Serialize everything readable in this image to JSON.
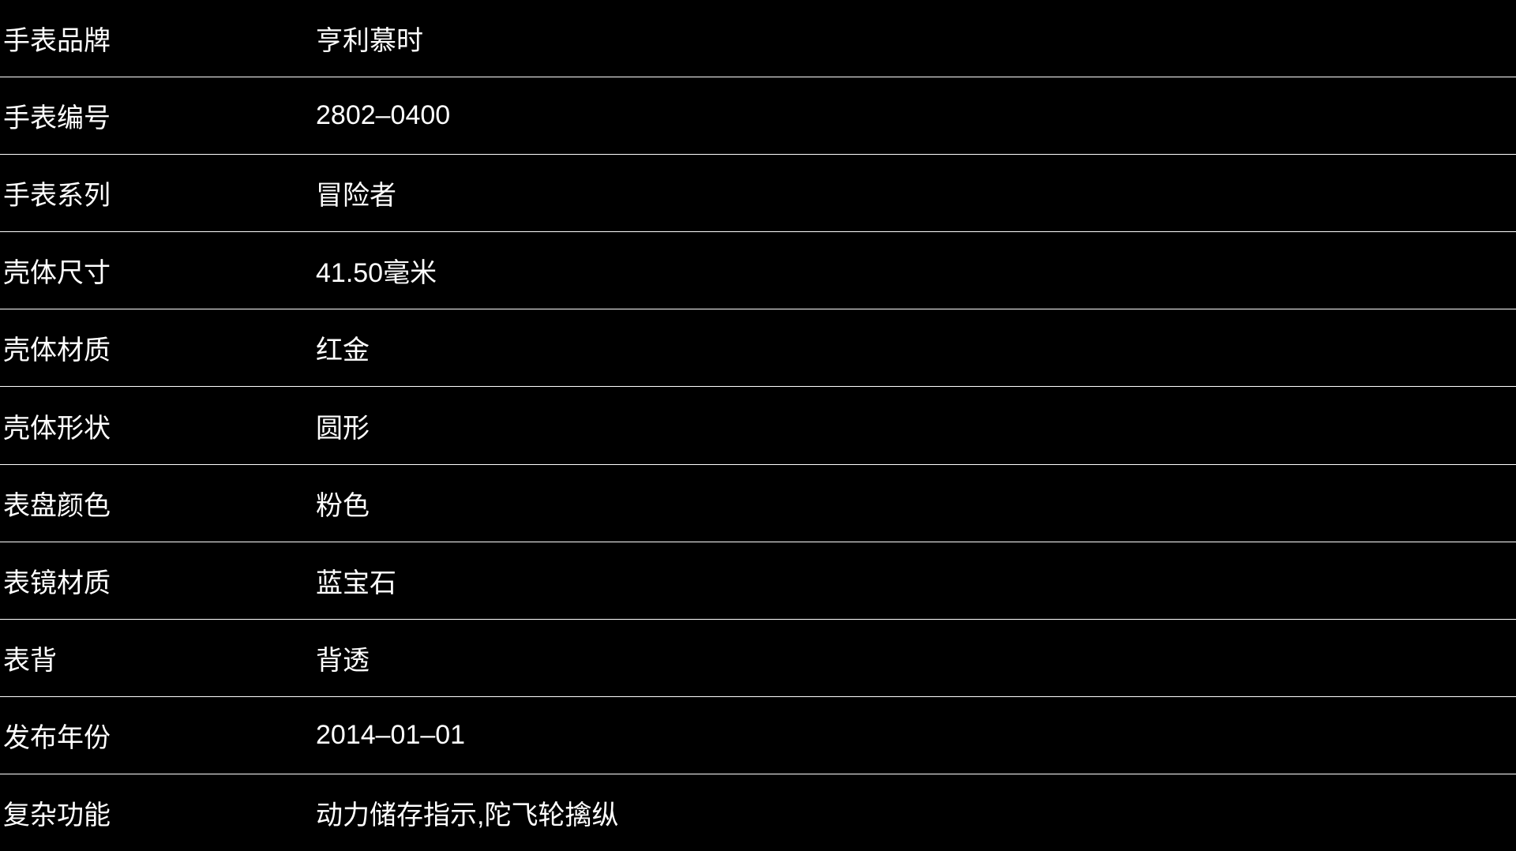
{
  "page": {
    "background_color": "#000000",
    "text_color": "#ffffff",
    "divider_color": "#ffffff"
  },
  "table": {
    "rows": [
      {
        "label": "手表品牌",
        "value": "亨利慕时"
      },
      {
        "label": "手表编号",
        "value": "2802–0400"
      },
      {
        "label": "手表系列",
        "value": "冒险者"
      },
      {
        "label": "壳体尺寸",
        "value": "41.50毫米"
      },
      {
        "label": "壳体材质",
        "value": "红金"
      },
      {
        "label": "壳体形状",
        "value": "圆形"
      },
      {
        "label": "表盘颜色",
        "value": "粉色"
      },
      {
        "label": "表镜材质",
        "value": "蓝宝石"
      },
      {
        "label": "表背",
        "value": "背透"
      },
      {
        "label": "发布年份",
        "value": "2014–01–01"
      },
      {
        "label": "复杂功能",
        "value": "动力储存指示,陀飞轮擒纵"
      }
    ]
  }
}
